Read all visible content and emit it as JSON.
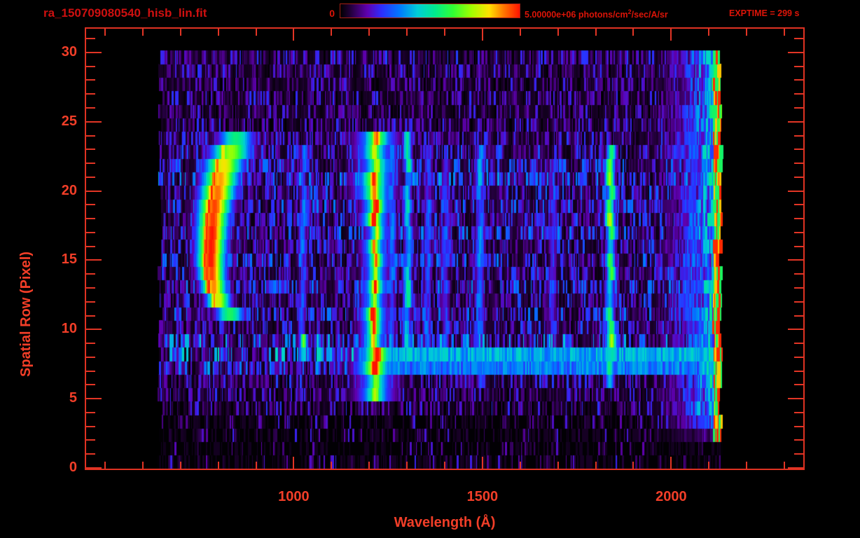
{
  "header": {
    "title": "ra_150709080540_hisb_lin.fit",
    "colorbar_min": "0",
    "colorbar_max_prefix": "5.00000e+06 photons/cm",
    "colorbar_max_sup": "2",
    "colorbar_max_suffix": "/sec/A/sr",
    "exptime": "EXPTIME = 299 s"
  },
  "colors": {
    "background": "#000000",
    "title_red": "#ce1010",
    "header_red": "#dc1408",
    "axis_red": "#e23525",
    "label_red": "#f23e28"
  },
  "chart_data": {
    "type": "heatmap",
    "title": "ra_150709080540_hisb_lin.fit",
    "xlabel": "Wavelength (Å)",
    "ylabel": "Spatial Row (Pixel)",
    "xlim": [
      450,
      2350
    ],
    "ylim": [
      0,
      31.8
    ],
    "x_major_ticks": [
      1000,
      1500,
      2000
    ],
    "x_minor_step": 100,
    "x_minor_range": [
      500,
      2300
    ],
    "y_major_ticks": [
      0,
      5,
      10,
      15,
      20,
      25,
      30
    ],
    "y_minor_step": 1,
    "y_minor_range": [
      0,
      31
    ],
    "colorbar": {
      "min": 0,
      "max": 5000000,
      "units": "photons/cm²/sec/A/sr"
    },
    "exposure_seconds": 299,
    "data_extent": {
      "wavelength": [
        640,
        2135
      ],
      "rows": [
        0,
        30
      ]
    },
    "colormap_stops": [
      [
        0.0,
        0,
        0,
        0
      ],
      [
        0.05,
        30,
        0,
        50
      ],
      [
        0.15,
        95,
        0,
        175
      ],
      [
        0.23,
        45,
        45,
        255
      ],
      [
        0.33,
        0,
        120,
        255
      ],
      [
        0.43,
        0,
        205,
        215
      ],
      [
        0.53,
        0,
        235,
        140
      ],
      [
        0.63,
        50,
        255,
        50
      ],
      [
        0.73,
        160,
        255,
        0
      ],
      [
        0.83,
        255,
        225,
        0
      ],
      [
        0.91,
        255,
        120,
        0
      ],
      [
        1.0,
        255,
        20,
        0
      ]
    ],
    "row_background": [
      0.45,
      0.4,
      0.45,
      0.45,
      0.5,
      0.5,
      0.55,
      0.8,
      1.0,
      0.9,
      0.6,
      0.7,
      0.6,
      0.75,
      0.6,
      0.7,
      0.6,
      0.75,
      0.6,
      0.7,
      0.65,
      0.8,
      0.7,
      0.6,
      0.55,
      0.5,
      0.45,
      0.5,
      0.45,
      0.5,
      0.55
    ],
    "row_density": [
      0.22,
      0.18,
      0.25,
      0.3,
      0.65,
      0.9,
      0.95,
      1,
      1,
      1,
      1,
      1,
      1,
      1,
      1,
      1,
      1,
      1,
      1,
      1,
      1,
      1,
      1,
      1,
      1,
      0.88,
      0.88,
      0.88,
      0.88,
      0.88,
      0.88
    ],
    "emission_lines": [
      {
        "id": "lyb",
        "wavelength": 1025,
        "rows": [
          8,
          23
        ],
        "intensity": 0.3,
        "width": 7,
        "knots": [
          {
            "rows": [
              8,
              9
            ],
            "intensity": 0.55
          }
        ]
      },
      {
        "id": "lya",
        "wavelength": 1216,
        "rows": [
          5,
          24
        ],
        "intensity": 0.95,
        "width": 8,
        "wide_rows": [
          [
            5,
            8
          ],
          [
            20,
            24
          ]
        ]
      },
      {
        "id": "si2",
        "wavelength": 1260,
        "rows": [
          7,
          23
        ],
        "intensity": 0.3,
        "width": 8
      },
      {
        "id": "oi",
        "wavelength": 1304,
        "rows": [
          8,
          24
        ],
        "intensity": 0.45,
        "width": 8
      },
      {
        "id": "ci",
        "wavelength": 1356,
        "rows": [
          7,
          23
        ],
        "intensity": 0.28,
        "width": 7
      },
      {
        "id": "si4",
        "wavelength": 1403,
        "rows": [
          7,
          22
        ],
        "intensity": 0.26,
        "width": 8
      },
      {
        "id": "ni",
        "wavelength": 1493,
        "rows": [
          6,
          23
        ],
        "intensity": 0.34,
        "width": 8
      },
      {
        "id": "al2",
        "wavelength": 1687,
        "rows": [
          7,
          22
        ],
        "intensity": 0.22,
        "width": 8
      },
      {
        "id": "s1800",
        "wavelength": 1840,
        "rows": [
          6,
          23
        ],
        "intensity": 0.52,
        "width": 9,
        "knots": [
          {
            "rows": [
              7,
              9
            ],
            "intensity": 0.62
          },
          {
            "rows": [
              18,
              22
            ],
            "intensity": 0.62
          }
        ]
      }
    ],
    "arc_feature": {
      "comment": "bright crescent, per row: [row, center_wavelength, width, intensity, core_wavelength]",
      "rows": [
        [
          24,
          848,
          70,
          0.55,
          0
        ],
        [
          23,
          833,
          80,
          0.72,
          812
        ],
        [
          22,
          815,
          75,
          0.82,
          797
        ],
        [
          21,
          806,
          70,
          0.88,
          790
        ],
        [
          20,
          798,
          68,
          0.92,
          782
        ],
        [
          19,
          791,
          64,
          0.96,
          776
        ],
        [
          18,
          786,
          60,
          0.97,
          771
        ],
        [
          17,
          783,
          58,
          1.0,
          768
        ],
        [
          16,
          781,
          56,
          1.0,
          766
        ],
        [
          15,
          781,
          55,
          1.0,
          766
        ],
        [
          14,
          783,
          52,
          0.96,
          768
        ],
        [
          13,
          789,
          50,
          0.9,
          775
        ],
        [
          12,
          801,
          48,
          0.78,
          790
        ],
        [
          11,
          832,
          58,
          0.58,
          0
        ]
      ]
    },
    "horizontal_band": {
      "rows": [
        7,
        8
      ],
      "wavelength": [
        1230,
        2130
      ],
      "intensity": 0.3
    },
    "right_band": {
      "wavelength": [
        1930,
        2135
      ],
      "max_intensity": 0.65,
      "edge": {
        "wavelength": [
          2112,
          2135
        ],
        "intensity": 0.95,
        "rows": [
          2,
          30
        ]
      }
    }
  }
}
